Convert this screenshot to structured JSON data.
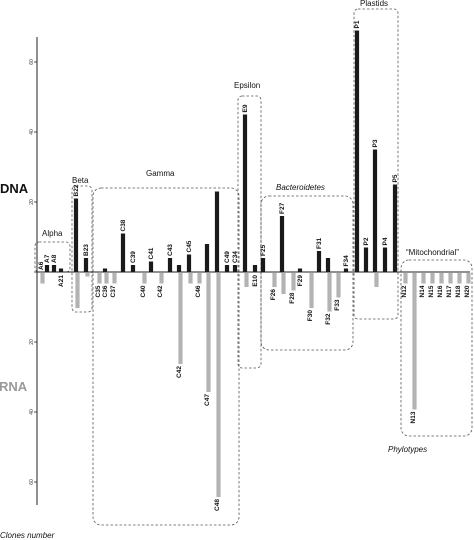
{
  "chart_data": {
    "type": "bar",
    "dna_label": "DNA",
    "rna_label": "RNA",
    "x_axis_title": "Phylotypes",
    "y_axis_title": "Clones number",
    "y_ticks": [
      60,
      40,
      20,
      0,
      20,
      40,
      60
    ],
    "y_tick_labels": [
      "60",
      "40",
      "20",
      "",
      "20",
      "40",
      "60"
    ],
    "ylim_dna": [
      0,
      75
    ],
    "ylim_rna": [
      0,
      75
    ],
    "colors": {
      "dna": "#1a1a1a",
      "rna": "#b3b3b3",
      "box": "#555555"
    },
    "groups": [
      {
        "name": "Alpha",
        "italic": false
      },
      {
        "name": "Beta",
        "italic": false
      },
      {
        "name": "Gamma",
        "italic": false
      },
      {
        "name": "Epsilon",
        "italic": false
      },
      {
        "name": "Bacteroidetes",
        "italic": true
      },
      {
        "name": "Plastids",
        "italic": false
      },
      {
        "name": "“Mitochondrial”",
        "italic": false
      }
    ],
    "phylotypes": [
      {
        "label": "A6",
        "dna": 0,
        "rna": 3,
        "pos": "up"
      },
      {
        "label": "A7",
        "dna": 2,
        "rna": 0,
        "pos": "up"
      },
      {
        "label": "A8",
        "dna": 2,
        "rna": 0,
        "pos": "up"
      },
      {
        "label": "A21",
        "dna": 1,
        "rna": 0,
        "pos": "down"
      },
      {
        "label": "B22",
        "dna": 21,
        "rna": 10,
        "pos": "up"
      },
      {
        "label": "B23",
        "dna": 4,
        "rna": 1,
        "pos": "up"
      },
      {
        "label": "C35",
        "dna": 0,
        "rna": 3,
        "pos": "down"
      },
      {
        "label": "C36",
        "dna": 1,
        "rna": 3,
        "pos": "down"
      },
      {
        "label": "C37",
        "dna": 0,
        "rna": 3,
        "pos": "down"
      },
      {
        "label": "C38",
        "dna": 11,
        "rna": 0,
        "pos": "up"
      },
      {
        "label": "C39",
        "dna": 2,
        "rna": 0,
        "pos": "up"
      },
      {
        "label": "C40",
        "dna": 0,
        "rna": 3,
        "pos": "down"
      },
      {
        "label": "C41",
        "dna": 3,
        "rna": 0,
        "pos": "up"
      },
      {
        "label": "C42",
        "dna": 0,
        "rna": 3,
        "pos": "down"
      },
      {
        "label": "C43",
        "dna": 4,
        "rna": 0,
        "pos": "up"
      },
      {
        "label": "C42",
        "dna": 2,
        "rna": 26,
        "pos": "down"
      },
      {
        "label": "C45",
        "dna": 5,
        "rna": 3,
        "pos": "up"
      },
      {
        "label": "C46",
        "dna": 0,
        "rna": 3,
        "pos": "down"
      },
      {
        "label": "C47",
        "dna": 8,
        "rna": 34,
        "pos": "down"
      },
      {
        "label": "C48",
        "dna": 23,
        "rna": 64,
        "pos": "down"
      },
      {
        "label": "C49",
        "dna": 2,
        "rna": 0,
        "pos": "up"
      },
      {
        "label": "C34",
        "dna": 2,
        "rna": 0,
        "pos": "up"
      },
      {
        "label": "E9",
        "dna": 45,
        "rna": 4,
        "pos": "up"
      },
      {
        "label": "E10",
        "dna": 2,
        "rna": 0,
        "pos": "down"
      },
      {
        "label": "F25",
        "dna": 4,
        "rna": 0,
        "pos": "up"
      },
      {
        "label": "F26",
        "dna": 0,
        "rna": 4,
        "pos": "down"
      },
      {
        "label": "F27",
        "dna": 16,
        "rna": 6,
        "pos": "up"
      },
      {
        "label": "F28",
        "dna": 0,
        "rna": 5,
        "pos": "down"
      },
      {
        "label": "F29",
        "dna": 1,
        "rna": 0,
        "pos": "down"
      },
      {
        "label": "F30",
        "dna": 0,
        "rna": 10,
        "pos": "down"
      },
      {
        "label": "F31",
        "dna": 6,
        "rna": 0,
        "pos": "up"
      },
      {
        "label": "F32",
        "dna": 4,
        "rna": 11,
        "pos": "down"
      },
      {
        "label": "F33",
        "dna": 0,
        "rna": 7,
        "pos": "down"
      },
      {
        "label": "F34",
        "dna": 1,
        "rna": 0,
        "pos": "up"
      },
      {
        "label": "P1",
        "dna": 69,
        "rna": 0,
        "pos": "up"
      },
      {
        "label": "P2",
        "dna": 7,
        "rna": 0,
        "pos": "up"
      },
      {
        "label": "P3",
        "dna": 35,
        "rna": 4,
        "pos": "up"
      },
      {
        "label": "P4",
        "dna": 7,
        "rna": 0,
        "pos": "up"
      },
      {
        "label": "P5",
        "dna": 25,
        "rna": 0,
        "pos": "up"
      },
      {
        "label": "N12",
        "dna": 0,
        "rna": 3,
        "pos": "down"
      },
      {
        "label": "N13",
        "dna": 0,
        "rna": 39,
        "pos": "down"
      },
      {
        "label": "N14",
        "dna": 0,
        "rna": 3,
        "pos": "down"
      },
      {
        "label": "N15",
        "dna": 0,
        "rna": 3,
        "pos": "down"
      },
      {
        "label": "N16",
        "dna": 0,
        "rna": 3,
        "pos": "down"
      },
      {
        "label": "N17",
        "dna": 0,
        "rna": 3,
        "pos": "down"
      },
      {
        "label": "N18",
        "dna": 0,
        "rna": 3,
        "pos": "down"
      },
      {
        "label": "N20",
        "dna": 0,
        "rna": 3,
        "pos": "down"
      }
    ]
  }
}
